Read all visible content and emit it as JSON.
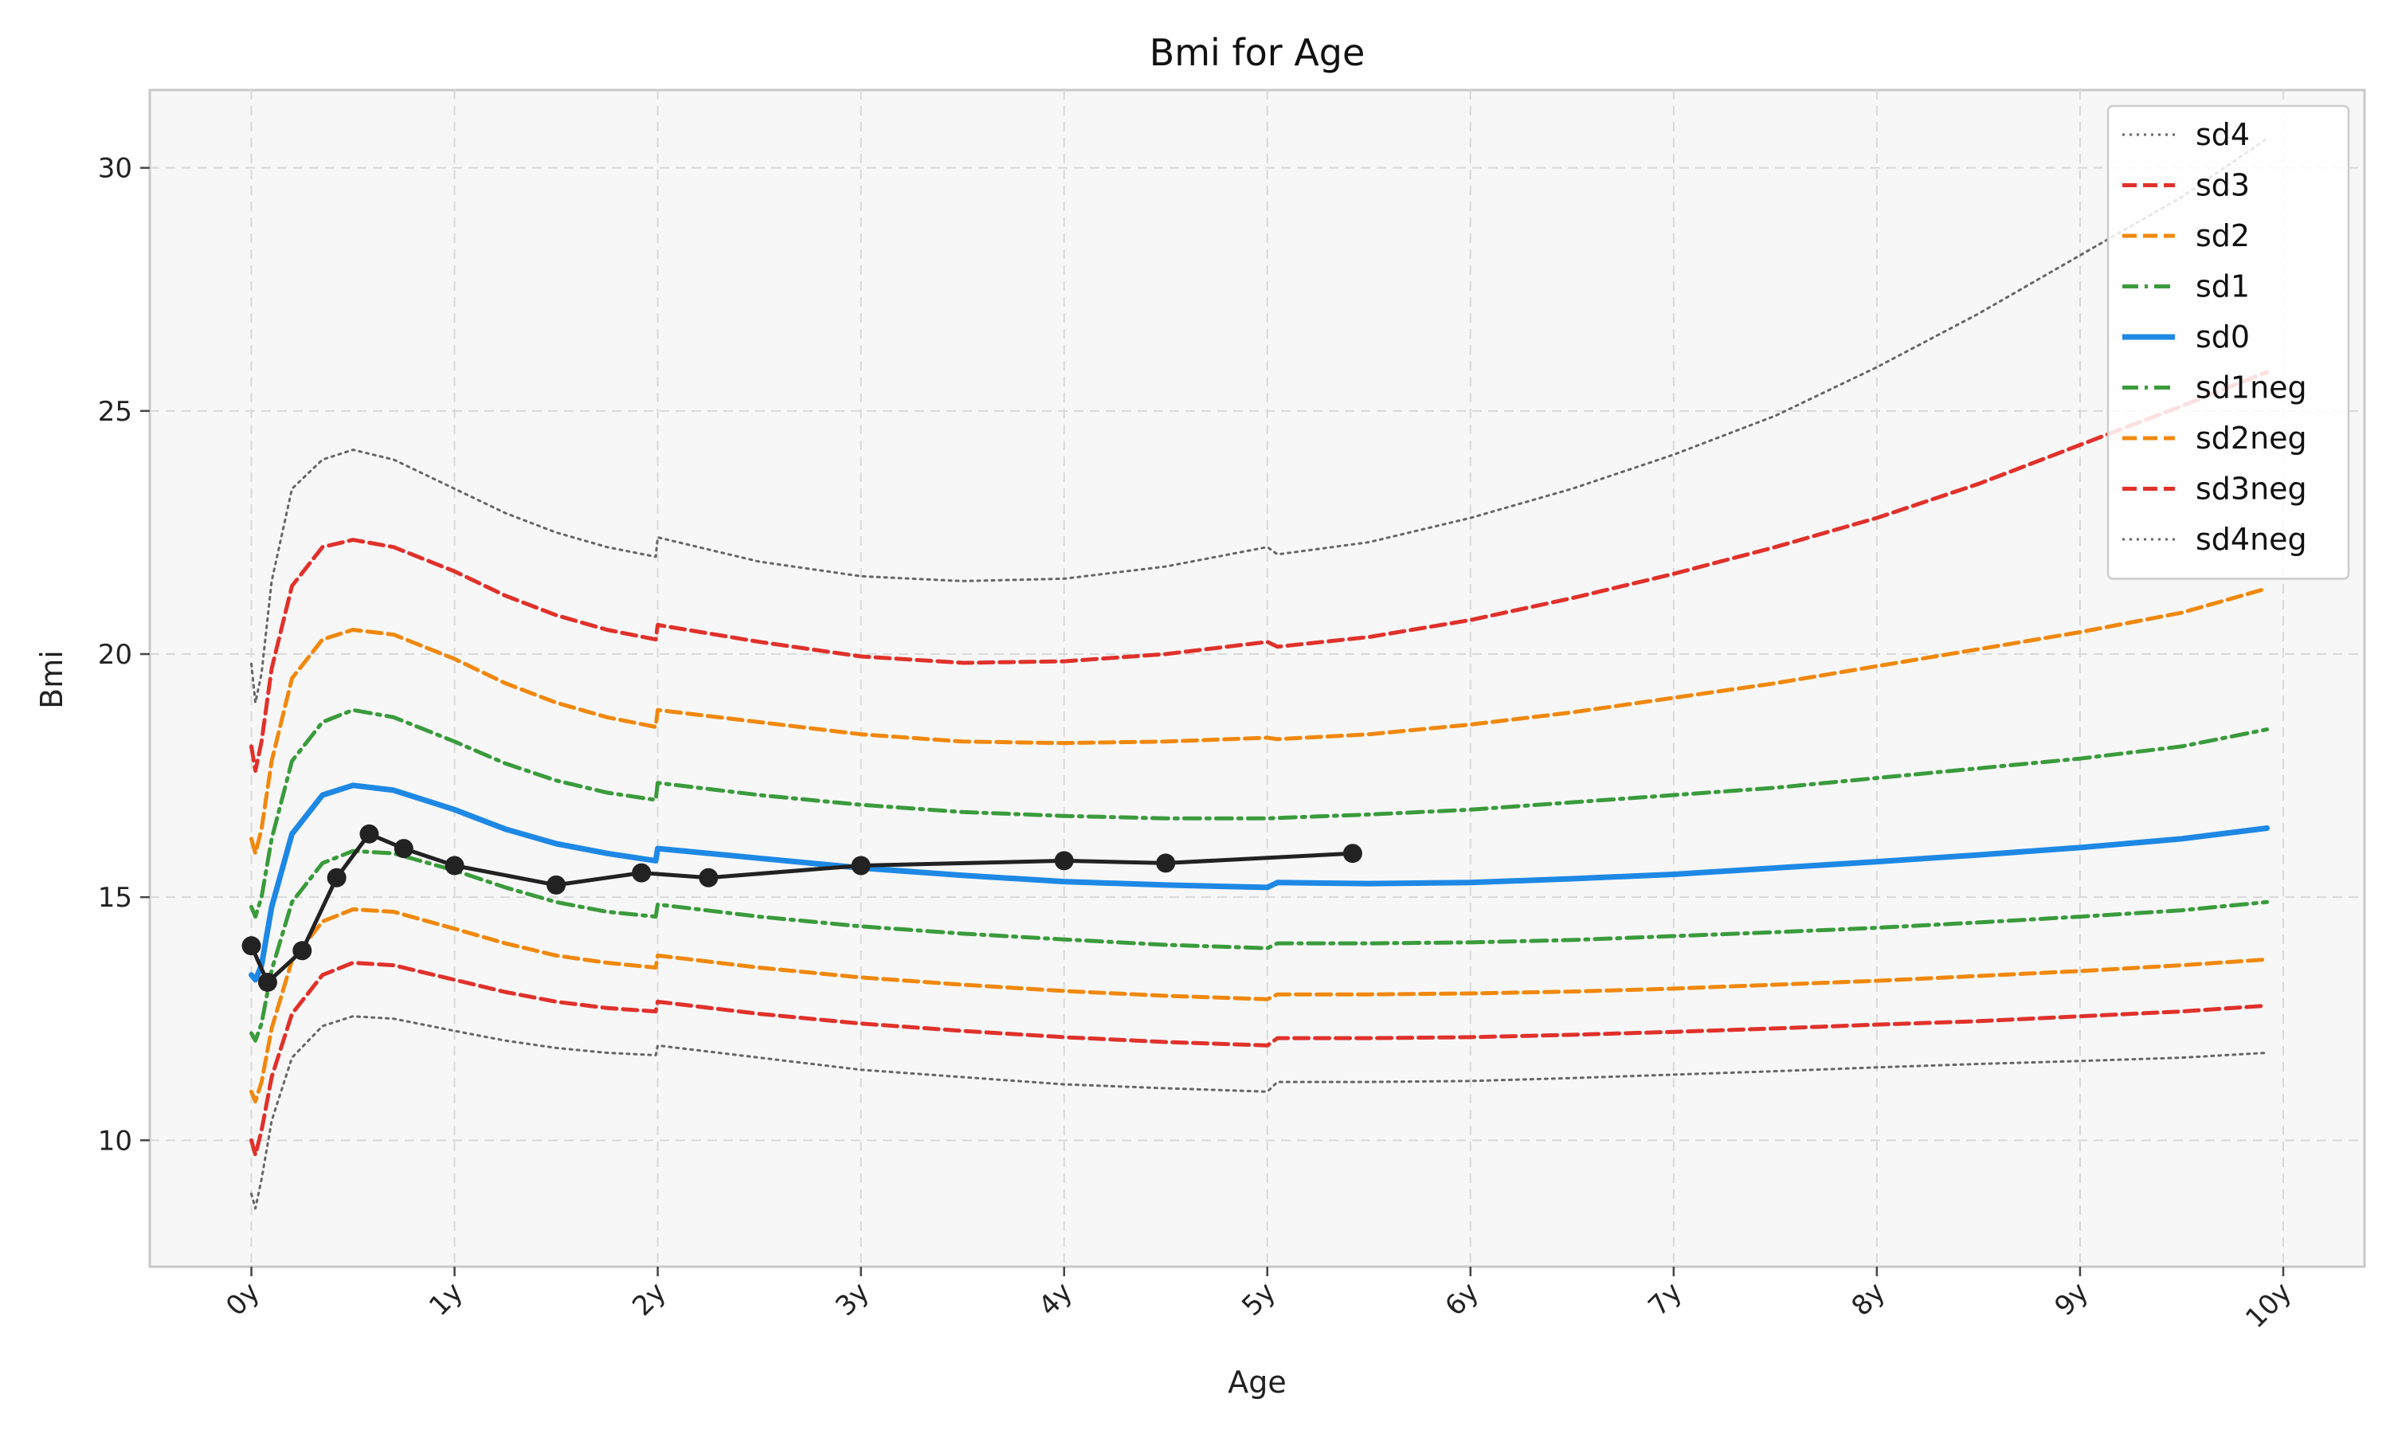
{
  "chart_data": {
    "type": "line",
    "title": "Bmi for Age",
    "xlabel": "Age",
    "ylabel": "Bmi",
    "xlim": [
      -0.5,
      10.4
    ],
    "ylim": [
      7.4,
      31.6
    ],
    "grid": true,
    "legend_position": "top-right",
    "x_ticks": [
      {
        "value": 0,
        "label": "0y"
      },
      {
        "value": 1,
        "label": "1y"
      },
      {
        "value": 2,
        "label": "2y"
      },
      {
        "value": 3,
        "label": "3y"
      },
      {
        "value": 4,
        "label": "4y"
      },
      {
        "value": 5,
        "label": "5y"
      },
      {
        "value": 6,
        "label": "6y"
      },
      {
        "value": 7,
        "label": "7y"
      },
      {
        "value": 8,
        "label": "8y"
      },
      {
        "value": 9,
        "label": "9y"
      },
      {
        "value": 10,
        "label": "10y"
      }
    ],
    "y_ticks": [
      {
        "value": 10,
        "label": "10"
      },
      {
        "value": 15,
        "label": "15"
      },
      {
        "value": 20,
        "label": "20"
      },
      {
        "value": 25,
        "label": "25"
      },
      {
        "value": 30,
        "label": "30"
      }
    ],
    "series": [
      {
        "name": "sd4",
        "color": "#666666",
        "dash": "dotted",
        "width": 3,
        "points": [
          [
            0,
            19.8
          ],
          [
            0.02,
            19
          ],
          [
            0.05,
            19.6
          ],
          [
            0.1,
            21.5
          ],
          [
            0.2,
            23.4
          ],
          [
            0.35,
            24.0
          ],
          [
            0.5,
            24.2
          ],
          [
            0.7,
            24.0
          ],
          [
            1,
            23.4
          ],
          [
            1.25,
            22.9
          ],
          [
            1.5,
            22.5
          ],
          [
            1.75,
            22.2
          ],
          [
            1.99,
            22.0
          ],
          [
            2.0,
            22.4
          ],
          [
            2.5,
            21.9
          ],
          [
            3,
            21.6
          ],
          [
            3.5,
            21.5
          ],
          [
            4,
            21.55
          ],
          [
            4.5,
            21.8
          ],
          [
            5.0,
            22.2
          ],
          [
            5.05,
            22.05
          ],
          [
            5.5,
            22.3
          ],
          [
            6,
            22.8
          ],
          [
            6.5,
            23.4
          ],
          [
            7,
            24.1
          ],
          [
            7.5,
            24.9
          ],
          [
            8,
            25.9
          ],
          [
            8.5,
            27.0
          ],
          [
            9,
            28.2
          ],
          [
            9.5,
            29.4
          ],
          [
            9.92,
            30.6
          ]
        ]
      },
      {
        "name": "sd3",
        "color": "#e0312b",
        "dash": "dashed",
        "width": 5,
        "points": [
          [
            0,
            18.1
          ],
          [
            0.02,
            17.6
          ],
          [
            0.05,
            18.2
          ],
          [
            0.1,
            19.7
          ],
          [
            0.2,
            21.4
          ],
          [
            0.35,
            22.2
          ],
          [
            0.5,
            22.35
          ],
          [
            0.7,
            22.2
          ],
          [
            1,
            21.7
          ],
          [
            1.25,
            21.2
          ],
          [
            1.5,
            20.8
          ],
          [
            1.75,
            20.5
          ],
          [
            1.99,
            20.3
          ],
          [
            2.0,
            20.6
          ],
          [
            2.5,
            20.25
          ],
          [
            3,
            19.95
          ],
          [
            3.5,
            19.82
          ],
          [
            4,
            19.85
          ],
          [
            4.5,
            20.0
          ],
          [
            5.0,
            20.25
          ],
          [
            5.05,
            20.15
          ],
          [
            5.5,
            20.35
          ],
          [
            6,
            20.7
          ],
          [
            6.5,
            21.15
          ],
          [
            7,
            21.65
          ],
          [
            7.5,
            22.2
          ],
          [
            8,
            22.8
          ],
          [
            8.5,
            23.5
          ],
          [
            9,
            24.3
          ],
          [
            9.5,
            25.1
          ],
          [
            9.92,
            25.8
          ]
        ]
      },
      {
        "name": "sd2",
        "color": "#f0880e",
        "dash": "dashed",
        "width": 5,
        "points": [
          [
            0,
            16.2
          ],
          [
            0.02,
            15.9
          ],
          [
            0.05,
            16.4
          ],
          [
            0.1,
            17.8
          ],
          [
            0.2,
            19.5
          ],
          [
            0.35,
            20.3
          ],
          [
            0.5,
            20.5
          ],
          [
            0.7,
            20.4
          ],
          [
            1,
            19.9
          ],
          [
            1.25,
            19.4
          ],
          [
            1.5,
            19.0
          ],
          [
            1.75,
            18.7
          ],
          [
            1.99,
            18.5
          ],
          [
            2.0,
            18.85
          ],
          [
            2.5,
            18.6
          ],
          [
            3,
            18.35
          ],
          [
            3.5,
            18.2
          ],
          [
            4,
            18.17
          ],
          [
            4.5,
            18.2
          ],
          [
            5.0,
            18.28
          ],
          [
            5.05,
            18.25
          ],
          [
            5.5,
            18.35
          ],
          [
            6,
            18.55
          ],
          [
            6.5,
            18.8
          ],
          [
            7,
            19.1
          ],
          [
            7.5,
            19.4
          ],
          [
            8,
            19.75
          ],
          [
            8.5,
            20.1
          ],
          [
            9,
            20.45
          ],
          [
            9.5,
            20.85
          ],
          [
            9.92,
            21.35
          ]
        ]
      },
      {
        "name": "sd1",
        "color": "#3a9b3c",
        "dash": "dashdot",
        "width": 5,
        "points": [
          [
            0,
            14.8
          ],
          [
            0.02,
            14.6
          ],
          [
            0.05,
            15.0
          ],
          [
            0.1,
            16.2
          ],
          [
            0.2,
            17.8
          ],
          [
            0.35,
            18.6
          ],
          [
            0.5,
            18.85
          ],
          [
            0.7,
            18.7
          ],
          [
            1,
            18.2
          ],
          [
            1.25,
            17.75
          ],
          [
            1.5,
            17.4
          ],
          [
            1.75,
            17.15
          ],
          [
            1.99,
            17.0
          ],
          [
            2.0,
            17.35
          ],
          [
            2.5,
            17.1
          ],
          [
            3,
            16.9
          ],
          [
            3.5,
            16.75
          ],
          [
            4,
            16.67
          ],
          [
            4.5,
            16.62
          ],
          [
            5.0,
            16.62
          ],
          [
            5.05,
            16.63
          ],
          [
            5.5,
            16.7
          ],
          [
            6,
            16.8
          ],
          [
            6.5,
            16.95
          ],
          [
            7,
            17.1
          ],
          [
            7.5,
            17.25
          ],
          [
            8,
            17.45
          ],
          [
            8.5,
            17.65
          ],
          [
            9,
            17.85
          ],
          [
            9.5,
            18.1
          ],
          [
            9.92,
            18.45
          ]
        ]
      },
      {
        "name": "sd0",
        "color": "#1e88e5",
        "dash": "solid",
        "width": 7,
        "points": [
          [
            0,
            13.4
          ],
          [
            0.02,
            13.3
          ],
          [
            0.05,
            13.6
          ],
          [
            0.1,
            14.8
          ],
          [
            0.2,
            16.3
          ],
          [
            0.35,
            17.1
          ],
          [
            0.5,
            17.3
          ],
          [
            0.7,
            17.2
          ],
          [
            1,
            16.8
          ],
          [
            1.25,
            16.4
          ],
          [
            1.5,
            16.1
          ],
          [
            1.75,
            15.9
          ],
          [
            1.99,
            15.75
          ],
          [
            2.0,
            16.0
          ],
          [
            2.5,
            15.8
          ],
          [
            3,
            15.6
          ],
          [
            3.5,
            15.45
          ],
          [
            4,
            15.32
          ],
          [
            4.5,
            15.25
          ],
          [
            5.0,
            15.2
          ],
          [
            5.05,
            15.3
          ],
          [
            5.5,
            15.28
          ],
          [
            6,
            15.3
          ],
          [
            6.5,
            15.38
          ],
          [
            7,
            15.47
          ],
          [
            7.5,
            15.6
          ],
          [
            8,
            15.73
          ],
          [
            8.5,
            15.87
          ],
          [
            9,
            16.02
          ],
          [
            9.5,
            16.2
          ],
          [
            9.92,
            16.42
          ]
        ]
      },
      {
        "name": "sd1neg",
        "color": "#3a9b3c",
        "dash": "dashdot",
        "width": 5,
        "points": [
          [
            0,
            12.2
          ],
          [
            0.02,
            12.05
          ],
          [
            0.05,
            12.4
          ],
          [
            0.1,
            13.5
          ],
          [
            0.2,
            14.9
          ],
          [
            0.35,
            15.7
          ],
          [
            0.5,
            15.95
          ],
          [
            0.7,
            15.9
          ],
          [
            1,
            15.55
          ],
          [
            1.25,
            15.2
          ],
          [
            1.5,
            14.9
          ],
          [
            1.75,
            14.7
          ],
          [
            1.99,
            14.6
          ],
          [
            2.0,
            14.85
          ],
          [
            2.5,
            14.6
          ],
          [
            3,
            14.4
          ],
          [
            3.5,
            14.25
          ],
          [
            4,
            14.13
          ],
          [
            4.5,
            14.02
          ],
          [
            5.0,
            13.95
          ],
          [
            5.05,
            14.05
          ],
          [
            5.5,
            14.05
          ],
          [
            6,
            14.07
          ],
          [
            6.5,
            14.12
          ],
          [
            7,
            14.2
          ],
          [
            7.5,
            14.28
          ],
          [
            8,
            14.37
          ],
          [
            8.5,
            14.48
          ],
          [
            9,
            14.6
          ],
          [
            9.5,
            14.73
          ],
          [
            9.92,
            14.9
          ]
        ]
      },
      {
        "name": "sd2neg",
        "color": "#f0880e",
        "dash": "dashed",
        "width": 5,
        "points": [
          [
            0,
            11.0
          ],
          [
            0.02,
            10.8
          ],
          [
            0.05,
            11.2
          ],
          [
            0.1,
            12.3
          ],
          [
            0.2,
            13.7
          ],
          [
            0.35,
            14.5
          ],
          [
            0.5,
            14.75
          ],
          [
            0.7,
            14.7
          ],
          [
            1,
            14.35
          ],
          [
            1.25,
            14.05
          ],
          [
            1.5,
            13.8
          ],
          [
            1.75,
            13.65
          ],
          [
            1.99,
            13.55
          ],
          [
            2.0,
            13.8
          ],
          [
            2.5,
            13.55
          ],
          [
            3,
            13.35
          ],
          [
            3.5,
            13.2
          ],
          [
            4,
            13.07
          ],
          [
            4.5,
            12.97
          ],
          [
            5.0,
            12.9
          ],
          [
            5.05,
            13.0
          ],
          [
            5.5,
            13.0
          ],
          [
            6,
            13.02
          ],
          [
            6.5,
            13.06
          ],
          [
            7,
            13.12
          ],
          [
            7.5,
            13.2
          ],
          [
            8,
            13.28
          ],
          [
            8.5,
            13.38
          ],
          [
            9,
            13.48
          ],
          [
            9.5,
            13.6
          ],
          [
            9.92,
            13.72
          ]
        ]
      },
      {
        "name": "sd3neg",
        "color": "#e0312b",
        "dash": "dashed",
        "width": 5,
        "points": [
          [
            0,
            10.0
          ],
          [
            0.02,
            9.7
          ],
          [
            0.05,
            10.2
          ],
          [
            0.1,
            11.3
          ],
          [
            0.2,
            12.6
          ],
          [
            0.35,
            13.4
          ],
          [
            0.5,
            13.65
          ],
          [
            0.7,
            13.6
          ],
          [
            1,
            13.3
          ],
          [
            1.25,
            13.05
          ],
          [
            1.5,
            12.85
          ],
          [
            1.75,
            12.72
          ],
          [
            1.99,
            12.65
          ],
          [
            2.0,
            12.85
          ],
          [
            2.5,
            12.6
          ],
          [
            3,
            12.4
          ],
          [
            3.5,
            12.25
          ],
          [
            4,
            12.12
          ],
          [
            4.5,
            12.02
          ],
          [
            5.0,
            11.95
          ],
          [
            5.05,
            12.1
          ],
          [
            5.5,
            12.1
          ],
          [
            6,
            12.12
          ],
          [
            6.5,
            12.17
          ],
          [
            7,
            12.23
          ],
          [
            7.5,
            12.3
          ],
          [
            8,
            12.38
          ],
          [
            8.5,
            12.45
          ],
          [
            9,
            12.55
          ],
          [
            9.5,
            12.65
          ],
          [
            9.92,
            12.77
          ]
        ]
      },
      {
        "name": "sd4neg",
        "color": "#666666",
        "dash": "dotted",
        "width": 3,
        "points": [
          [
            0,
            8.9
          ],
          [
            0.02,
            8.6
          ],
          [
            0.05,
            9.2
          ],
          [
            0.1,
            10.4
          ],
          [
            0.2,
            11.7
          ],
          [
            0.35,
            12.35
          ],
          [
            0.5,
            12.55
          ],
          [
            0.7,
            12.5
          ],
          [
            1,
            12.25
          ],
          [
            1.25,
            12.05
          ],
          [
            1.5,
            11.9
          ],
          [
            1.75,
            11.8
          ],
          [
            1.99,
            11.75
          ],
          [
            2.0,
            11.95
          ],
          [
            2.5,
            11.7
          ],
          [
            3,
            11.45
          ],
          [
            3.5,
            11.3
          ],
          [
            4,
            11.15
          ],
          [
            4.5,
            11.07
          ],
          [
            5.0,
            11.0
          ],
          [
            5.05,
            11.2
          ],
          [
            5.5,
            11.2
          ],
          [
            6,
            11.22
          ],
          [
            6.5,
            11.28
          ],
          [
            7,
            11.35
          ],
          [
            7.5,
            11.42
          ],
          [
            8,
            11.5
          ],
          [
            8.5,
            11.57
          ],
          [
            9,
            11.63
          ],
          [
            9.5,
            11.7
          ],
          [
            9.92,
            11.8
          ]
        ]
      }
    ],
    "measurements": {
      "color": "#222222",
      "points": [
        [
          0.0,
          14.0
        ],
        [
          0.08,
          13.25
        ],
        [
          0.25,
          13.9
        ],
        [
          0.42,
          15.4
        ],
        [
          0.58,
          16.3
        ],
        [
          0.75,
          16.0
        ],
        [
          1.0,
          15.65
        ],
        [
          1.5,
          15.25
        ],
        [
          1.92,
          15.5
        ],
        [
          2.25,
          15.4
        ],
        [
          3.0,
          15.65
        ],
        [
          4.0,
          15.75
        ],
        [
          4.5,
          15.7
        ],
        [
          5.42,
          15.9
        ]
      ]
    }
  }
}
